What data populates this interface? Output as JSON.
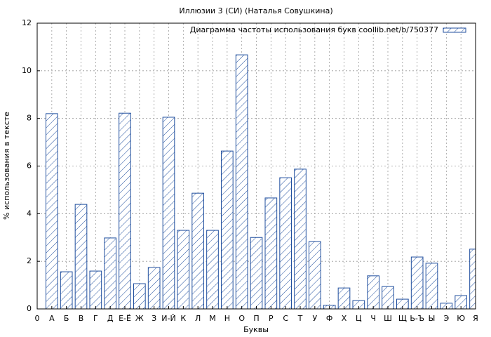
{
  "chart_data": {
    "type": "bar",
    "title": "Иллюзии 3 (СИ) (Наталья Совушкина)",
    "x_label": "Буквы",
    "y_label": "% использования в тексте",
    "x": [
      1,
      2,
      3,
      4,
      5,
      6,
      7,
      8,
      9,
      10,
      11,
      12,
      13,
      14,
      15,
      16,
      17,
      18,
      19,
      20,
      21,
      22,
      23,
      24,
      25,
      26,
      27,
      28,
      29,
      30
    ],
    "series": [
      {
        "name": "Диаграмма частоты использования букв coollib.net/b/750377",
        "color": "#1f4e9e",
        "values": [
          8.2,
          1.56,
          4.39,
          1.59,
          2.98,
          8.22,
          1.06,
          1.74,
          8.05,
          3.3,
          4.86,
          3.3,
          6.63,
          10.67,
          3.0,
          4.66,
          5.51,
          5.87,
          2.83,
          0.15,
          0.88,
          0.35,
          1.39,
          0.94,
          0.41,
          2.18,
          1.92,
          0.24,
          0.56,
          2.51
        ]
      }
    ],
    "xlim": [
      0,
      30
    ],
    "xticks": [
      {
        "value": 0,
        "label": "0"
      },
      {
        "value": 1,
        "label": "А"
      },
      {
        "value": 2,
        "label": "Б"
      },
      {
        "value": 3,
        "label": "В"
      },
      {
        "value": 4,
        "label": "Г"
      },
      {
        "value": 5,
        "label": "Д"
      },
      {
        "value": 6,
        "label": "Е-Ё"
      },
      {
        "value": 7,
        "label": "Ж"
      },
      {
        "value": 8,
        "label": "З"
      },
      {
        "value": 9,
        "label": "И-Й"
      },
      {
        "value": 10,
        "label": "К"
      },
      {
        "value": 11,
        "label": "Л"
      },
      {
        "value": 12,
        "label": "М"
      },
      {
        "value": 13,
        "label": "Н"
      },
      {
        "value": 14,
        "label": "О"
      },
      {
        "value": 15,
        "label": "П"
      },
      {
        "value": 16,
        "label": "Р"
      },
      {
        "value": 17,
        "label": "С"
      },
      {
        "value": 18,
        "label": "Т"
      },
      {
        "value": 19,
        "label": "У"
      },
      {
        "value": 20,
        "label": "Ф"
      },
      {
        "value": 21,
        "label": "Х"
      },
      {
        "value": 22,
        "label": "Ц"
      },
      {
        "value": 23,
        "label": "Ч"
      },
      {
        "value": 24,
        "label": "Ш"
      },
      {
        "value": 25,
        "label": "Щ"
      },
      {
        "value": 26,
        "label": "Ь-Ъ"
      },
      {
        "value": 27,
        "label": "Ы"
      },
      {
        "value": 28,
        "label": "Э"
      },
      {
        "value": 29,
        "label": "Ю"
      },
      {
        "value": 30,
        "label": "Я"
      }
    ],
    "ylim": [
      0,
      12
    ],
    "yticks": [
      0,
      2,
      4,
      6,
      8,
      10,
      12
    ],
    "grid": true,
    "legend": "upper-right"
  }
}
